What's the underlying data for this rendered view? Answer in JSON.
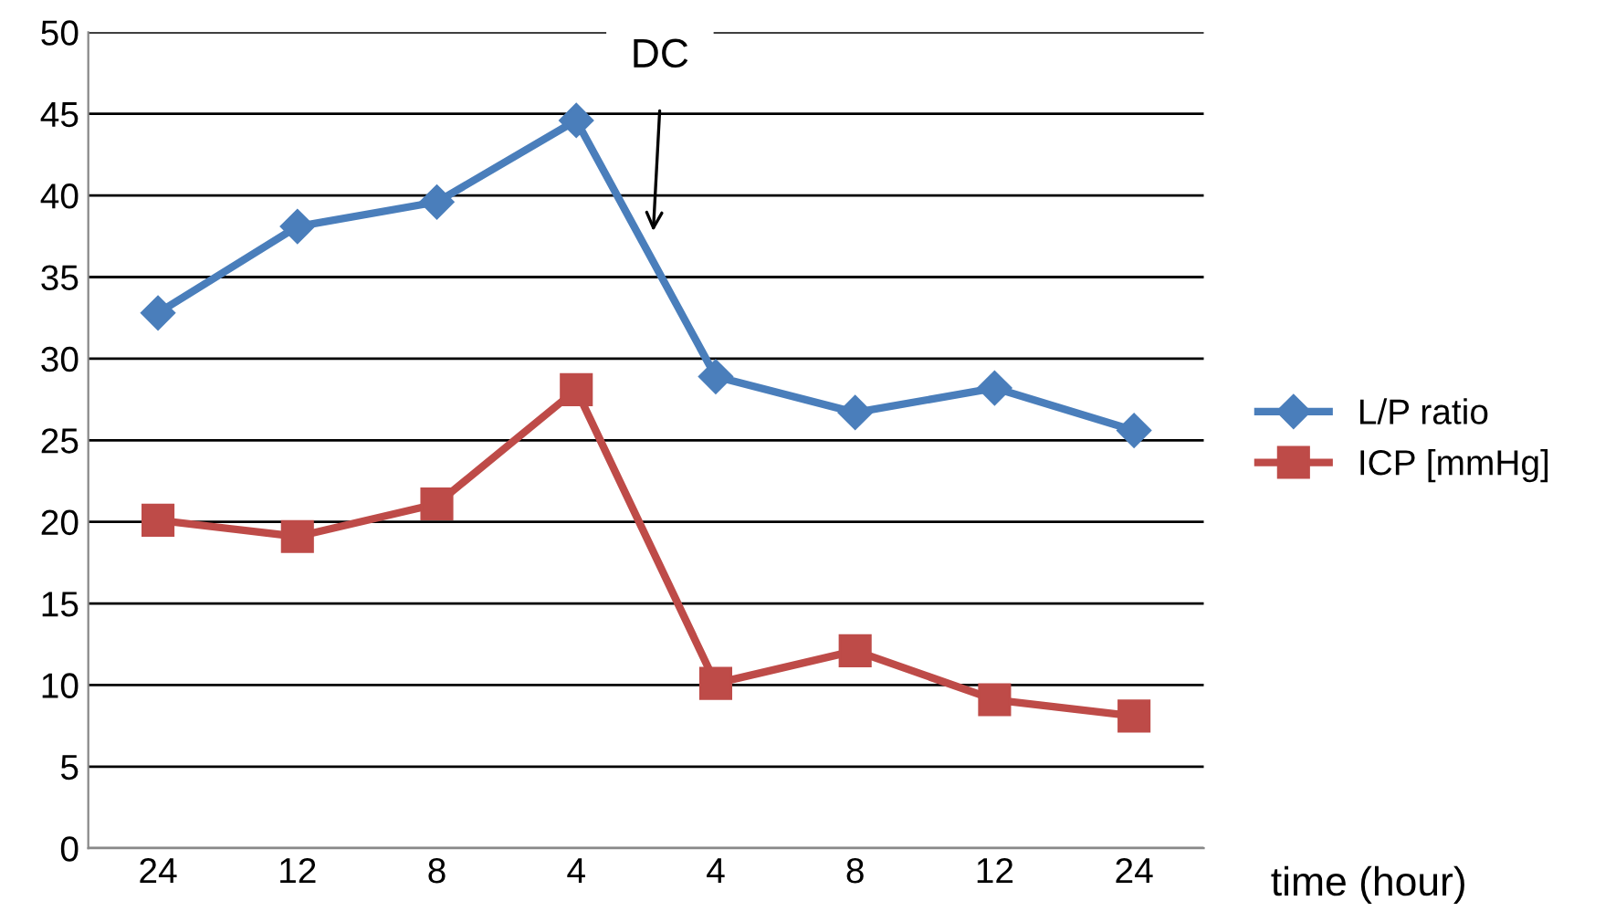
{
  "chart_data": {
    "type": "line",
    "categories": [
      "24",
      "12",
      "8",
      "4",
      "4",
      "8",
      "12",
      "24"
    ],
    "series": [
      {
        "name": "L/P ratio",
        "color": "#4a7ebb",
        "marker": "diamond",
        "values": [
          32.8,
          38.1,
          39.6,
          44.6,
          28.9,
          26.7,
          28.2,
          25.6
        ]
      },
      {
        "name": "ICP [mmHg]",
        "color": "#be4b48",
        "marker": "square",
        "values": [
          20.1,
          19.1,
          21.1,
          28.1,
          10.1,
          12.1,
          9.1,
          8.1
        ]
      }
    ],
    "xlabel": "time (hour)",
    "ylim": [
      0,
      50
    ],
    "yticks": [
      0,
      5,
      10,
      15,
      20,
      25,
      30,
      35,
      40,
      45,
      50
    ],
    "grid": "y",
    "legend": "right",
    "annotations": [
      "DC"
    ]
  }
}
